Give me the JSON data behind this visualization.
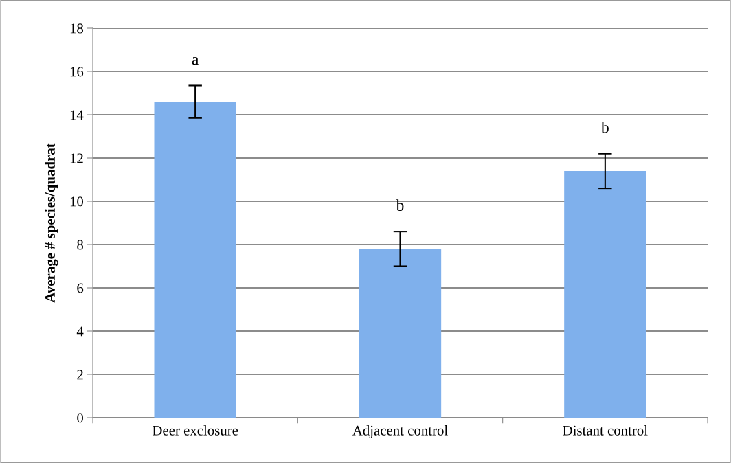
{
  "chart_data": {
    "type": "bar",
    "ylabel": "Average # species/quadrat",
    "categories": [
      "Deer exclosure",
      "Adjacent control",
      "Distant control"
    ],
    "values": [
      14.6,
      7.8,
      11.4
    ],
    "errors": [
      0.75,
      0.8,
      0.8
    ],
    "color": "#7fb0ec",
    "ylim": [
      0,
      18
    ],
    "yticks": [
      0,
      2,
      4,
      6,
      8,
      10,
      12,
      14,
      16,
      18
    ],
    "grid": "y",
    "annotations": [
      "a",
      "b",
      "b"
    ]
  }
}
